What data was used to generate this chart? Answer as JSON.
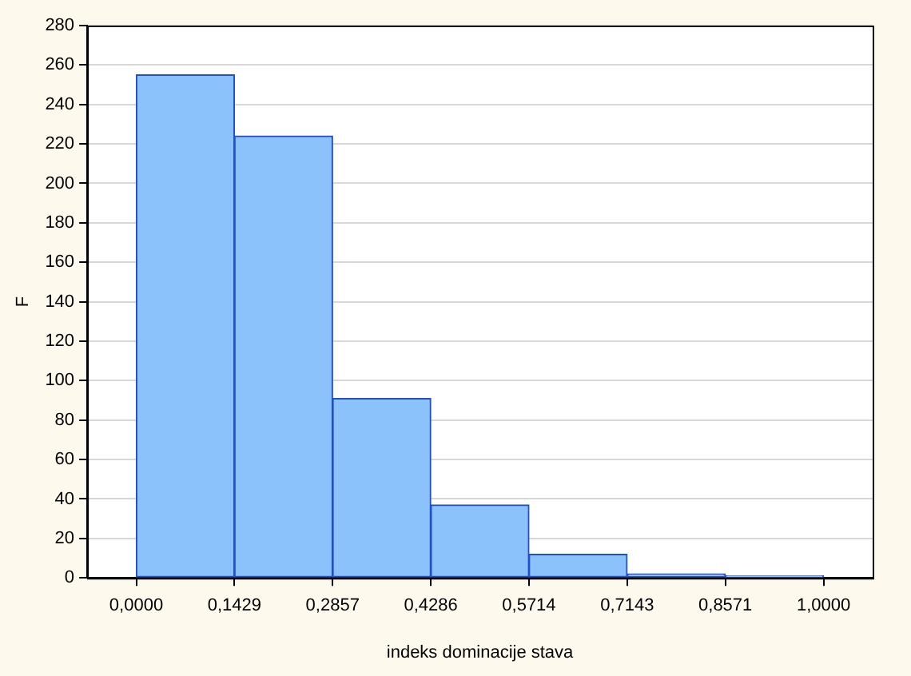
{
  "chart_data": {
    "type": "histogram",
    "xlabel": "indeks dominacije stava",
    "ylabel": "F",
    "bins": [
      0,
      0.1429,
      0.2857,
      0.4286,
      0.5714,
      0.7143,
      0.8571,
      1
    ],
    "values": [
      255,
      224,
      91,
      37,
      12,
      2,
      1
    ],
    "color": "#8cc2fc",
    "xlim": [
      -0.0714,
      1.0714
    ],
    "xticks": [
      {
        "value": 0,
        "label": "0,0000"
      },
      {
        "value": 0.1429,
        "label": "0,1429"
      },
      {
        "value": 0.2857,
        "label": "0,2857"
      },
      {
        "value": 0.4286,
        "label": "0,4286"
      },
      {
        "value": 0.5714,
        "label": "0,5714"
      },
      {
        "value": 0.7143,
        "label": "0,7143"
      },
      {
        "value": 0.8571,
        "label": "0,8571"
      },
      {
        "value": 1,
        "label": "1,0000"
      }
    ],
    "ylim": [
      0,
      280
    ],
    "yticks": [
      0,
      20,
      40,
      60,
      80,
      100,
      120,
      140,
      160,
      180,
      200,
      220,
      240,
      260,
      280
    ],
    "grid": "y"
  }
}
